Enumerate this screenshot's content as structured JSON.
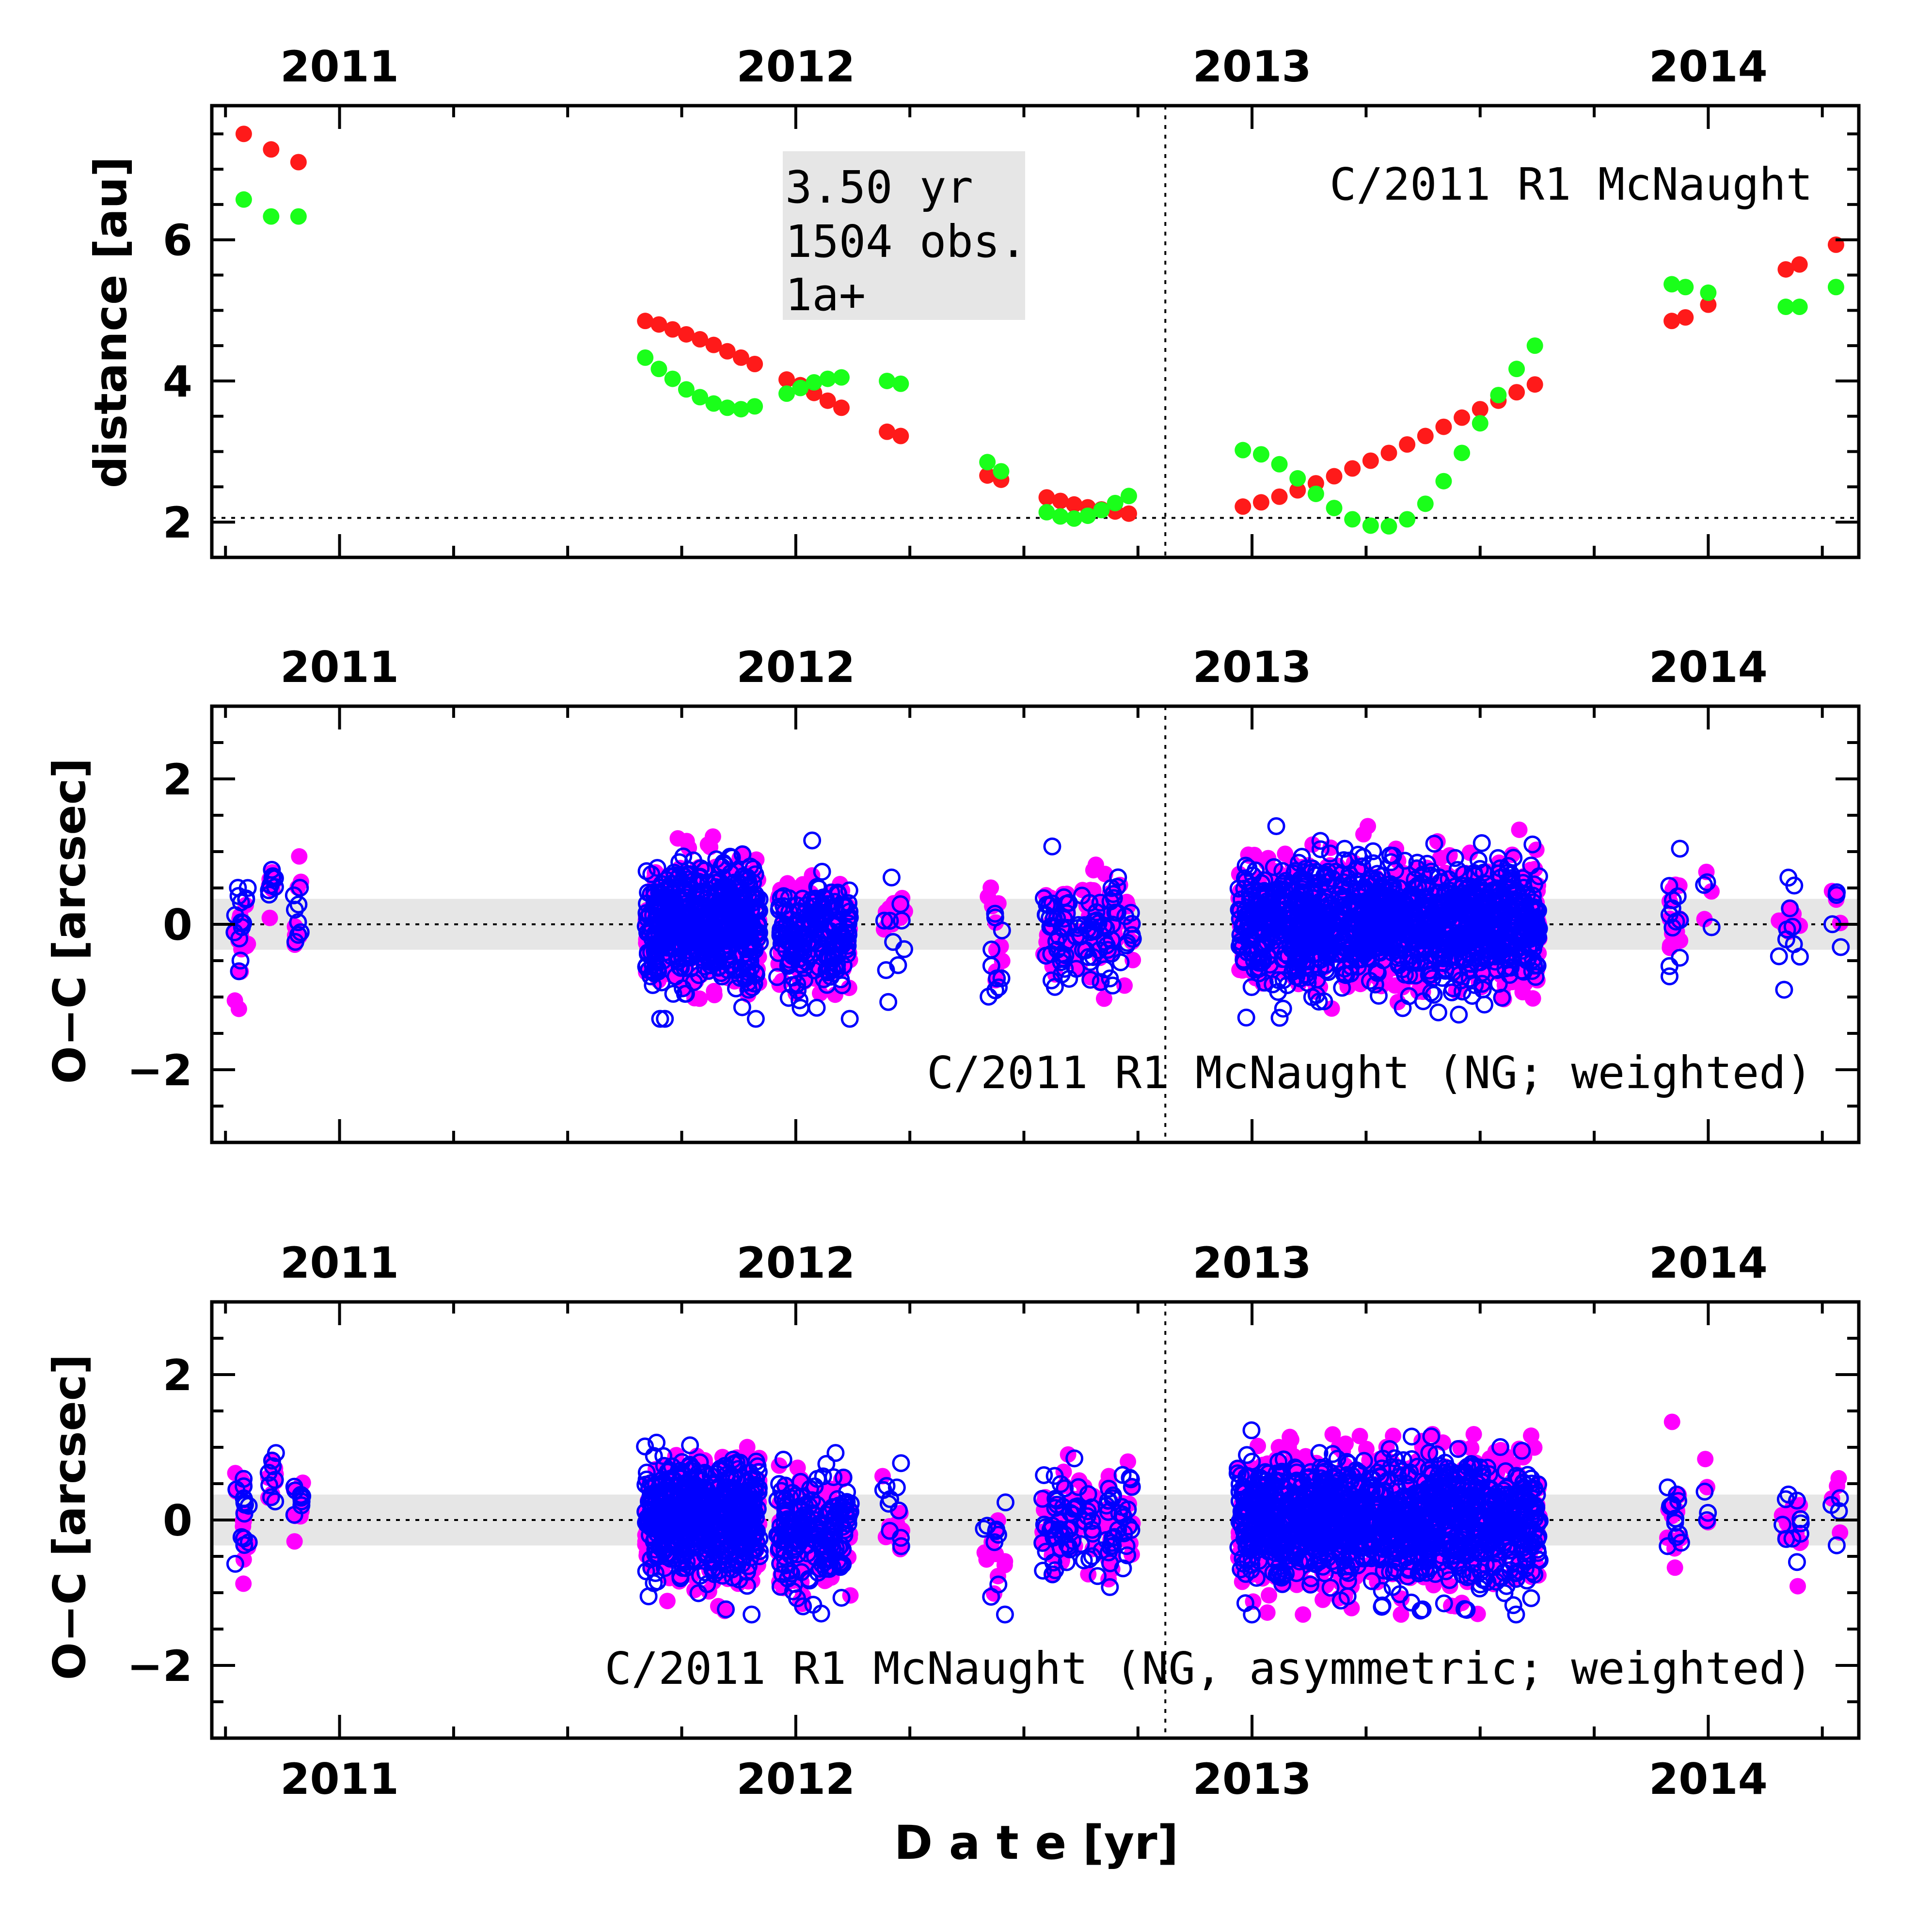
{
  "figure": {
    "xlabel": "D a t e [yr]",
    "xlim": [
      2010.72,
      2014.33
    ],
    "year_ticks": [
      "2011",
      "2012",
      "2013",
      "2014"
    ],
    "perihelion_date": 2012.81,
    "colors": {
      "sun_distance": "#ff1a1a",
      "earth_distance": "#1aff1a",
      "ra_residual": "#ff00ff",
      "dec_residual": "#0000ff",
      "band": "#e6e6e6",
      "info_box": "#e6e6e6"
    }
  },
  "chart_data": [
    {
      "type": "scatter",
      "name": "distance",
      "ylabel": "distance [au]",
      "ylim": [
        1.5,
        7.9
      ],
      "yticks": [
        "2",
        "4",
        "6"
      ],
      "ytick_values": [
        2,
        4,
        6
      ],
      "reference_line": 2.06,
      "label": "C/2011 R1 McNaught",
      "info_box": [
        "3.50 yr",
        "1504 obs.",
        "1a+"
      ],
      "series": [
        {
          "color_key": "sun_distance",
          "points": [
            [
              2010.79,
              7.5
            ],
            [
              2010.85,
              7.28
            ],
            [
              2010.91,
              7.1
            ],
            [
              2011.67,
              4.85
            ],
            [
              2011.7,
              4.8
            ],
            [
              2011.73,
              4.73
            ],
            [
              2011.76,
              4.66
            ],
            [
              2011.79,
              4.59
            ],
            [
              2011.82,
              4.51
            ],
            [
              2011.85,
              4.42
            ],
            [
              2011.88,
              4.33
            ],
            [
              2011.91,
              4.24
            ],
            [
              2011.98,
              4.02
            ],
            [
              2012.01,
              3.94
            ],
            [
              2012.04,
              3.83
            ],
            [
              2012.07,
              3.72
            ],
            [
              2012.1,
              3.62
            ],
            [
              2012.2,
              3.28
            ],
            [
              2012.23,
              3.22
            ],
            [
              2012.42,
              2.66
            ],
            [
              2012.45,
              2.6
            ],
            [
              2012.55,
              2.35
            ],
            [
              2012.58,
              2.3
            ],
            [
              2012.61,
              2.25
            ],
            [
              2012.64,
              2.21
            ],
            [
              2012.67,
              2.18
            ],
            [
              2012.7,
              2.15
            ],
            [
              2012.73,
              2.12
            ],
            [
              2012.98,
              2.22
            ],
            [
              2013.02,
              2.28
            ],
            [
              2013.06,
              2.36
            ],
            [
              2013.1,
              2.45
            ],
            [
              2013.14,
              2.55
            ],
            [
              2013.18,
              2.65
            ],
            [
              2013.22,
              2.76
            ],
            [
              2013.26,
              2.87
            ],
            [
              2013.3,
              2.98
            ],
            [
              2013.34,
              3.1
            ],
            [
              2013.38,
              3.22
            ],
            [
              2013.42,
              3.35
            ],
            [
              2013.46,
              3.48
            ],
            [
              2013.5,
              3.6
            ],
            [
              2013.54,
              3.72
            ],
            [
              2013.58,
              3.84
            ],
            [
              2013.62,
              3.95
            ],
            [
              2013.92,
              4.85
            ],
            [
              2013.95,
              4.9
            ],
            [
              2014.0,
              5.08
            ],
            [
              2014.17,
              5.58
            ],
            [
              2014.2,
              5.65
            ],
            [
              2014.28,
              5.93
            ]
          ]
        },
        {
          "color_key": "earth_distance",
          "points": [
            [
              2010.79,
              6.57
            ],
            [
              2010.85,
              6.33
            ],
            [
              2010.91,
              6.33
            ],
            [
              2011.67,
              4.33
            ],
            [
              2011.7,
              4.17
            ],
            [
              2011.73,
              4.03
            ],
            [
              2011.76,
              3.88
            ],
            [
              2011.79,
              3.77
            ],
            [
              2011.82,
              3.68
            ],
            [
              2011.85,
              3.62
            ],
            [
              2011.88,
              3.6
            ],
            [
              2011.91,
              3.64
            ],
            [
              2011.98,
              3.82
            ],
            [
              2012.01,
              3.9
            ],
            [
              2012.04,
              3.98
            ],
            [
              2012.07,
              4.03
            ],
            [
              2012.1,
              4.05
            ],
            [
              2012.2,
              4.0
            ],
            [
              2012.23,
              3.96
            ],
            [
              2012.42,
              2.85
            ],
            [
              2012.45,
              2.72
            ],
            [
              2012.55,
              2.14
            ],
            [
              2012.58,
              2.08
            ],
            [
              2012.61,
              2.05
            ],
            [
              2012.64,
              2.09
            ],
            [
              2012.67,
              2.17
            ],
            [
              2012.7,
              2.27
            ],
            [
              2012.73,
              2.37
            ],
            [
              2012.98,
              3.02
            ],
            [
              2013.02,
              2.96
            ],
            [
              2013.06,
              2.82
            ],
            [
              2013.1,
              2.62
            ],
            [
              2013.14,
              2.4
            ],
            [
              2013.18,
              2.2
            ],
            [
              2013.22,
              2.04
            ],
            [
              2013.26,
              1.95
            ],
            [
              2013.3,
              1.94
            ],
            [
              2013.34,
              2.04
            ],
            [
              2013.38,
              2.26
            ],
            [
              2013.42,
              2.58
            ],
            [
              2013.46,
              2.98
            ],
            [
              2013.5,
              3.4
            ],
            [
              2013.54,
              3.8
            ],
            [
              2013.58,
              4.17
            ],
            [
              2013.62,
              4.5
            ],
            [
              2013.92,
              5.37
            ],
            [
              2013.95,
              5.33
            ],
            [
              2014.0,
              5.25
            ],
            [
              2014.17,
              5.05
            ],
            [
              2014.2,
              5.05
            ],
            [
              2014.28,
              5.33
            ]
          ]
        }
      ]
    },
    {
      "type": "scatter",
      "name": "residuals-ng",
      "ylabel": "O−C [arcsec]",
      "ylim": [
        -3,
        3
      ],
      "yticks": [
        "−2",
        "0",
        "2"
      ],
      "ytick_values": [
        -2,
        0,
        2
      ],
      "band": [
        -0.35,
        0.35
      ],
      "reference_line": 0,
      "label": "C/2011 R1 McNaught (NG; weighted)",
      "clusters": [
        {
          "t0": 2010.77,
          "t1": 2010.8,
          "n": 14,
          "spread": 0.38,
          "mean": 0.0
        },
        {
          "t0": 2010.84,
          "t1": 2010.86,
          "n": 8,
          "spread": 0.22,
          "mean": 0.55
        },
        {
          "t0": 2010.9,
          "t1": 2010.92,
          "n": 8,
          "spread": 0.28,
          "mean": 0.1
        },
        {
          "t0": 2011.67,
          "t1": 2011.92,
          "n": 520,
          "spread": 0.38,
          "mean": 0.0
        },
        {
          "t0": 2011.96,
          "t1": 2012.12,
          "n": 180,
          "spread": 0.38,
          "mean": -0.15
        },
        {
          "t0": 2012.19,
          "t1": 2012.24,
          "n": 10,
          "spread": 0.4,
          "mean": 0.0
        },
        {
          "t0": 2012.41,
          "t1": 2012.46,
          "n": 10,
          "spread": 0.4,
          "mean": -0.3
        },
        {
          "t0": 2012.54,
          "t1": 2012.74,
          "n": 90,
          "spread": 0.35,
          "mean": -0.05
        },
        {
          "t0": 2012.97,
          "t1": 2013.63,
          "n": 1150,
          "spread": 0.4,
          "mean": 0.0
        },
        {
          "t0": 2013.91,
          "t1": 2013.94,
          "n": 12,
          "spread": 0.35,
          "mean": 0.0
        },
        {
          "t0": 2013.99,
          "t1": 2014.01,
          "n": 3,
          "spread": 0.25,
          "mean": 0.2
        },
        {
          "t0": 2014.15,
          "t1": 2014.21,
          "n": 10,
          "spread": 0.35,
          "mean": -0.1
        },
        {
          "t0": 2014.27,
          "t1": 2014.29,
          "n": 4,
          "spread": 0.3,
          "mean": 0.0
        }
      ]
    },
    {
      "type": "scatter",
      "name": "residuals-ng-asymmetric",
      "ylabel": "O−C [arcsec]",
      "ylim": [
        -3,
        3
      ],
      "yticks": [
        "−2",
        "0",
        "2"
      ],
      "ytick_values": [
        -2,
        0,
        2
      ],
      "band": [
        -0.35,
        0.35
      ],
      "reference_line": 0,
      "label": "C/2011 R1 McNaught (NG, asymmetric; weighted)",
      "clusters": [
        {
          "t0": 2010.77,
          "t1": 2010.8,
          "n": 14,
          "spread": 0.38,
          "mean": 0.0
        },
        {
          "t0": 2010.84,
          "t1": 2010.86,
          "n": 8,
          "spread": 0.22,
          "mean": 0.6
        },
        {
          "t0": 2010.9,
          "t1": 2010.92,
          "n": 8,
          "spread": 0.28,
          "mean": 0.15
        },
        {
          "t0": 2011.67,
          "t1": 2011.92,
          "n": 520,
          "spread": 0.38,
          "mean": 0.0
        },
        {
          "t0": 2011.96,
          "t1": 2012.12,
          "n": 180,
          "spread": 0.38,
          "mean": -0.2
        },
        {
          "t0": 2012.19,
          "t1": 2012.24,
          "n": 10,
          "spread": 0.4,
          "mean": 0.05
        },
        {
          "t0": 2012.41,
          "t1": 2012.46,
          "n": 10,
          "spread": 0.4,
          "mean": -0.35
        },
        {
          "t0": 2012.54,
          "t1": 2012.74,
          "n": 90,
          "spread": 0.35,
          "mean": -0.05
        },
        {
          "t0": 2012.97,
          "t1": 2013.63,
          "n": 1150,
          "spread": 0.42,
          "mean": 0.0
        },
        {
          "t0": 2013.91,
          "t1": 2013.94,
          "n": 12,
          "spread": 0.35,
          "mean": 0.05
        },
        {
          "t0": 2013.99,
          "t1": 2014.01,
          "n": 3,
          "spread": 0.25,
          "mean": 0.25
        },
        {
          "t0": 2014.15,
          "t1": 2014.21,
          "n": 10,
          "spread": 0.35,
          "mean": 0.0
        },
        {
          "t0": 2014.27,
          "t1": 2014.29,
          "n": 4,
          "spread": 0.35,
          "mean": 0.2
        }
      ]
    }
  ]
}
